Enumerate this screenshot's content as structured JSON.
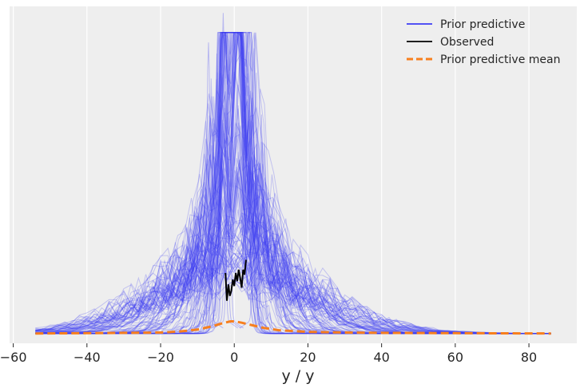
{
  "chart_data": {
    "type": "line",
    "title": "",
    "xlabel": "y / y",
    "ylabel": "",
    "xlim": [
      -61,
      93
    ],
    "ylim": [
      -0.003,
      0.1
    ],
    "grid": true,
    "xticks": [
      -60,
      -40,
      -20,
      0,
      20,
      40,
      60,
      80
    ],
    "xtick_labels": [
      "−60",
      "−40",
      "−20",
      "0",
      "20",
      "40",
      "60",
      "80"
    ],
    "legend": {
      "position": "top-right",
      "entries": [
        {
          "label": "Prior predictive",
          "color": "#3b3bf5",
          "style": "solid"
        },
        {
          "label": "Observed",
          "color": "#000000",
          "style": "solid"
        },
        {
          "label": "Prior predictive mean",
          "color": "#f77f1d",
          "style": "dashed"
        }
      ]
    },
    "series": [
      {
        "name": "Prior predictive mean",
        "color": "#f77f1d",
        "style": "dashed",
        "x": [
          -54,
          -40,
          -30,
          -20,
          -15,
          -10,
          -6,
          -3,
          -1,
          0,
          2,
          5,
          8,
          12,
          20,
          30,
          40,
          60,
          86
        ],
        "y": [
          0.0,
          0.0001,
          0.0002,
          0.0003,
          0.0006,
          0.0012,
          0.0022,
          0.0032,
          0.0037,
          0.0037,
          0.0033,
          0.0025,
          0.0017,
          0.001,
          0.0005,
          0.0003,
          0.0002,
          0.0001,
          0.0
        ]
      },
      {
        "name": "Observed",
        "color": "#000000",
        "style": "solid",
        "x": [
          -2.4,
          -2.0,
          -1.6,
          -1.2,
          -0.8,
          -0.4,
          0.0,
          0.4,
          0.8,
          1.2,
          1.6,
          2.0,
          2.4,
          2.8,
          3.2
        ],
        "y": [
          0.0185,
          0.01,
          0.015,
          0.0115,
          0.013,
          0.0165,
          0.0145,
          0.0185,
          0.016,
          0.0195,
          0.017,
          0.014,
          0.0195,
          0.018,
          0.0225
        ]
      },
      {
        "name": "Prior predictive",
        "color": "#3b3bf5",
        "style": "solid",
        "samples": 120,
        "note": "many faint density curves"
      }
    ]
  }
}
